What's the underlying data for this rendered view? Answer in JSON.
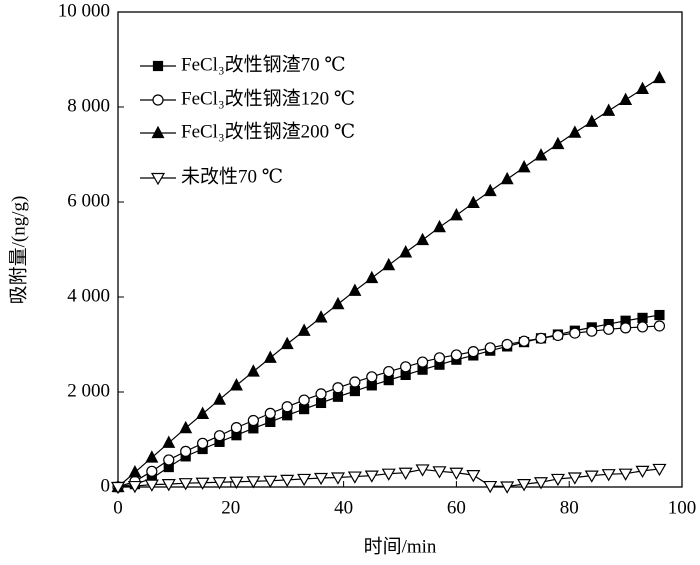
{
  "chart_data": {
    "type": "line",
    "xlabel": "时间/min",
    "ylabel": "吸附量/(ng/g)",
    "x": [
      0,
      3,
      6,
      9,
      12,
      15,
      18,
      21,
      24,
      27,
      30,
      33,
      36,
      39,
      42,
      45,
      48,
      51,
      54,
      57,
      60,
      63,
      66,
      69,
      72,
      75,
      78,
      81,
      84,
      87,
      90,
      93,
      96
    ],
    "series": [
      {
        "name": "FeCl₃改性钢渣70 ℃",
        "color": "#000000",
        "values": [
          0,
          60,
          180,
          420,
          645,
          800,
          950,
          1090,
          1235,
          1370,
          1510,
          1640,
          1770,
          1900,
          2020,
          2140,
          2250,
          2360,
          2470,
          2575,
          2680,
          2770,
          2870,
          2960,
          3050,
          3130,
          3210,
          3290,
          3360,
          3430,
          3500,
          3560,
          3620
        ]
      },
      {
        "name": "FeCl₃改性钢渣120 ℃",
        "color": "#000000",
        "values": [
          0,
          120,
          330,
          570,
          750,
          920,
          1080,
          1250,
          1400,
          1550,
          1690,
          1830,
          1960,
          2090,
          2210,
          2320,
          2430,
          2530,
          2630,
          2720,
          2780,
          2850,
          2930,
          3000,
          3070,
          3130,
          3190,
          3240,
          3280,
          3320,
          3350,
          3370,
          3390
        ]
      },
      {
        "name": "FeCl₃改性钢渣200 ℃",
        "color": "#000000",
        "values": [
          0,
          310,
          620,
          930,
          1240,
          1540,
          1840,
          2140,
          2430,
          2720,
          3010,
          3290,
          3570,
          3850,
          4130,
          4400,
          4670,
          4940,
          5200,
          5470,
          5720,
          5980,
          6230,
          6480,
          6730,
          6980,
          7220,
          7460,
          7690,
          7920,
          8150,
          8380,
          8610
        ]
      },
      {
        "name": "未改性70 ℃",
        "color": "#000000",
        "values": [
          0,
          20,
          50,
          60,
          80,
          90,
          100,
          110,
          120,
          130,
          150,
          170,
          190,
          200,
          220,
          240,
          280,
          300,
          370,
          330,
          300,
          250,
          20,
          10,
          60,
          100,
          170,
          200,
          240,
          270,
          280,
          340,
          380
        ]
      }
    ],
    "xlim": [
      0,
      100
    ],
    "xticks": [
      0,
      20,
      40,
      60,
      80,
      100
    ],
    "ylim": [
      0,
      10000
    ],
    "yticks": [
      0,
      {
        "value": 2000,
        "label": "2 000"
      },
      {
        "value": 4000,
        "label": "4 000"
      },
      {
        "value": 6000,
        "label": "6 000"
      },
      {
        "value": 8000,
        "label": "8 000"
      },
      {
        "value": 10000,
        "label": "10 000"
      }
    ],
    "legend": "upper left",
    "grid": false
  }
}
